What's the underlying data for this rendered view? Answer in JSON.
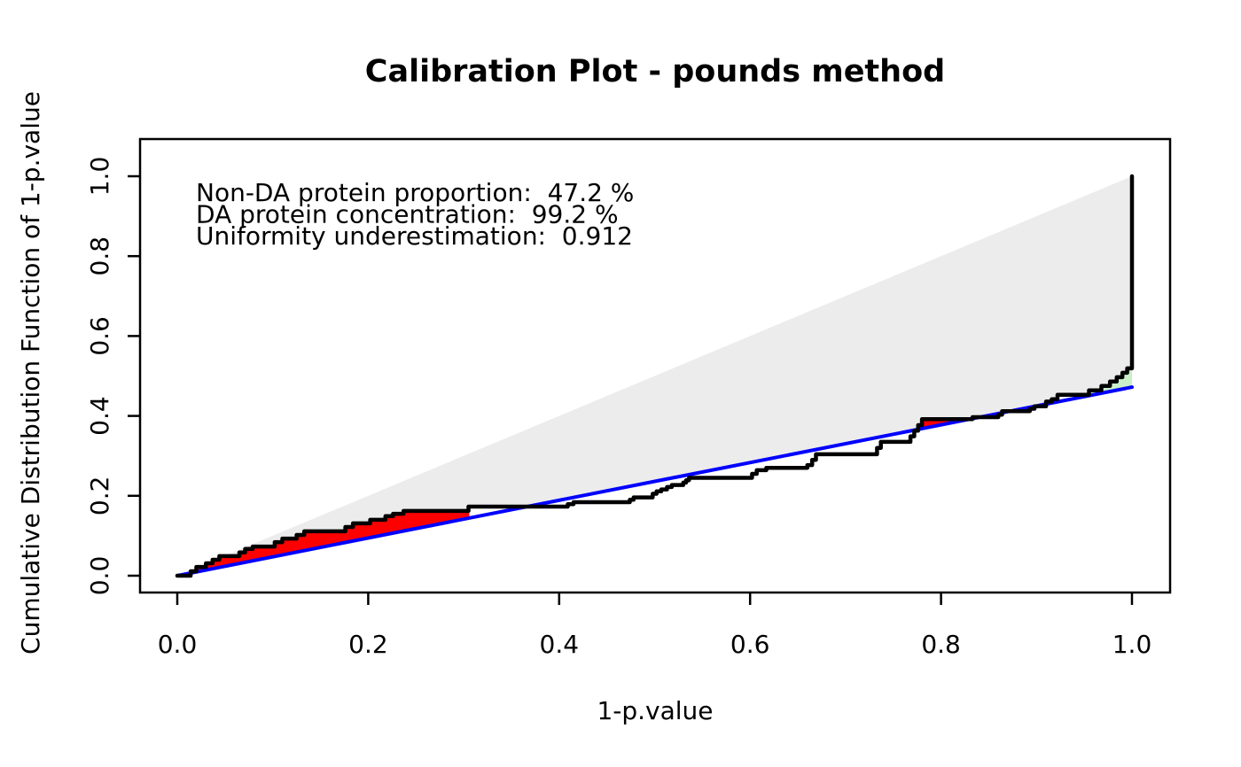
{
  "title": "Calibration Plot - pounds method",
  "annotations": {
    "line1": {
      "text": "Non-DA protein proportion:  47.2 %",
      "color": "#0000FF"
    },
    "line2": {
      "text": "DA protein concentration:  99.2 %",
      "color": "#008B00"
    },
    "line3": {
      "text": "Uniformity underestimation:  0.912",
      "color": "#FF0000"
    }
  },
  "chart_data": {
    "type": "line",
    "style": "ecdf-step-calibration",
    "title": "Calibration Plot - pounds method",
    "xlabel": "1-p.value",
    "ylabel": "Cumulative Distribution Function of 1-p.value",
    "xlim": [
      0,
      1
    ],
    "ylim": [
      0,
      1
    ],
    "grid": false,
    "legend": "none",
    "x_ticks": [
      "0.0",
      "0.2",
      "0.4",
      "0.6",
      "0.8",
      "1.0"
    ],
    "y_ticks": [
      "0.0",
      "0.2",
      "0.4",
      "0.6",
      "0.8",
      "1.0"
    ],
    "stats": {
      "non_da_protein_proportion_pct": 47.2,
      "da_protein_concentration_pct": 99.2,
      "uniformity_underestimation": 0.912
    },
    "pi0_line": {
      "slope": 0.472,
      "intercept": 0,
      "color": "#0000FF"
    },
    "diagonal": {
      "from": [
        0,
        0
      ],
      "to": [
        1,
        1
      ]
    },
    "ecdf_points": [
      [
        0.0,
        0.0
      ],
      [
        0.014,
        0.011
      ],
      [
        0.02,
        0.022
      ],
      [
        0.03,
        0.031
      ],
      [
        0.037,
        0.04
      ],
      [
        0.044,
        0.049
      ],
      [
        0.065,
        0.058
      ],
      [
        0.071,
        0.067
      ],
      [
        0.079,
        0.073
      ],
      [
        0.102,
        0.084
      ],
      [
        0.11,
        0.093
      ],
      [
        0.125,
        0.102
      ],
      [
        0.133,
        0.111
      ],
      [
        0.176,
        0.122
      ],
      [
        0.184,
        0.131
      ],
      [
        0.202,
        0.14
      ],
      [
        0.218,
        0.149
      ],
      [
        0.226,
        0.155
      ],
      [
        0.237,
        0.162
      ],
      [
        0.305,
        0.173
      ],
      [
        0.409,
        0.179
      ],
      [
        0.415,
        0.184
      ],
      [
        0.474,
        0.19
      ],
      [
        0.478,
        0.196
      ],
      [
        0.498,
        0.205
      ],
      [
        0.502,
        0.211
      ],
      [
        0.507,
        0.216
      ],
      [
        0.513,
        0.222
      ],
      [
        0.518,
        0.227
      ],
      [
        0.53,
        0.233
      ],
      [
        0.533,
        0.239
      ],
      [
        0.536,
        0.245
      ],
      [
        0.602,
        0.255
      ],
      [
        0.607,
        0.264
      ],
      [
        0.617,
        0.27
      ],
      [
        0.66,
        0.277
      ],
      [
        0.665,
        0.29
      ],
      [
        0.669,
        0.304
      ],
      [
        0.733,
        0.32
      ],
      [
        0.737,
        0.335
      ],
      [
        0.768,
        0.349
      ],
      [
        0.772,
        0.363
      ],
      [
        0.776,
        0.377
      ],
      [
        0.78,
        0.392
      ],
      [
        0.833,
        0.397
      ],
      [
        0.86,
        0.403
      ],
      [
        0.864,
        0.412
      ],
      [
        0.893,
        0.418
      ],
      [
        0.898,
        0.424
      ],
      [
        0.91,
        0.436
      ],
      [
        0.916,
        0.442
      ],
      [
        0.922,
        0.453
      ],
      [
        0.955,
        0.464
      ],
      [
        0.968,
        0.475
      ],
      [
        0.977,
        0.486
      ],
      [
        0.984,
        0.497
      ],
      [
        0.99,
        0.508
      ],
      [
        0.995,
        0.519
      ],
      [
        1.0,
        1.0
      ]
    ],
    "red_ranges": [
      [
        0.022,
        0.306
      ],
      [
        0.772,
        0.831
      ]
    ],
    "green_range": [
      0.952,
      1.0
    ],
    "colors": {
      "ecdf": "#000000",
      "pi0": "#0000FF",
      "gray_fill": "#ECECEC",
      "red_fill": "#FF0000",
      "green_fill": "#C9EFC9",
      "background": "#FFFFFF"
    }
  }
}
